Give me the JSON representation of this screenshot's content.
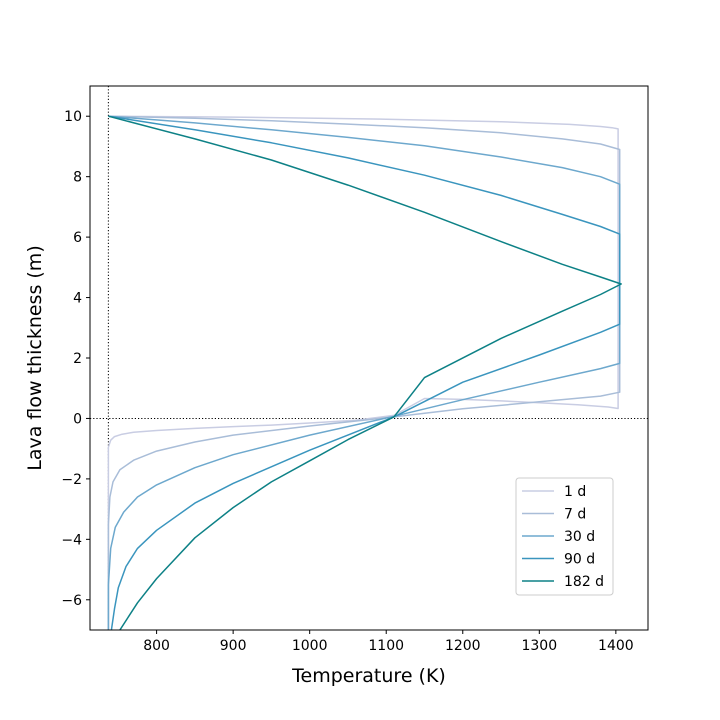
{
  "chart_data": {
    "type": "line",
    "xlabel": "Temperature (K)",
    "ylabel": "Lava flow thickness (m)",
    "xlim": [
      713,
      1442
    ],
    "ylim": [
      -7,
      11
    ],
    "xticks": [
      800,
      900,
      1000,
      1100,
      1200,
      1300,
      1400
    ],
    "xtick_labels": [
      "800",
      "900",
      "1000",
      "1100",
      "1200",
      "1300",
      "1400"
    ],
    "yticks": [
      -6,
      -4,
      -2,
      0,
      2,
      4,
      6,
      8,
      10
    ],
    "ytick_labels": [
      "−6",
      "−4",
      "−2",
      "0",
      "2",
      "4",
      "6",
      "8",
      "10"
    ],
    "reference_lines": {
      "vertical_x": 737,
      "horizontal_y": 0
    },
    "grid": false,
    "legend_position": "lower-right",
    "series": [
      {
        "name": "1 d",
        "color": "#c9cde3",
        "points": [
          [
            737,
            10
          ],
          [
            900,
            9.97
          ],
          [
            1100,
            9.9
          ],
          [
            1250,
            9.82
          ],
          [
            1340,
            9.73
          ],
          [
            1380,
            9.66
          ],
          [
            1395,
            9.62
          ],
          [
            1403,
            9.58
          ],
          [
            1403,
            0.33
          ],
          [
            1390,
            0.38
          ],
          [
            1350,
            0.45
          ],
          [
            1300,
            0.52
          ],
          [
            1250,
            0.58
          ],
          [
            1200,
            0.63
          ],
          [
            1150,
            0.66
          ],
          [
            1110,
            0.1
          ],
          [
            1060,
            -0.06
          ],
          [
            1000,
            -0.15
          ],
          [
            950,
            -0.22
          ],
          [
            900,
            -0.27
          ],
          [
            850,
            -0.33
          ],
          [
            800,
            -0.4
          ],
          [
            770,
            -0.46
          ],
          [
            755,
            -0.52
          ],
          [
            745,
            -0.6
          ],
          [
            740,
            -0.72
          ],
          [
            737,
            -0.95
          ],
          [
            737,
            -7
          ]
        ]
      },
      {
        "name": "7 d",
        "color": "#a9bdd8",
        "points": [
          [
            737,
            10
          ],
          [
            850,
            9.93
          ],
          [
            950,
            9.85
          ],
          [
            1050,
            9.74
          ],
          [
            1150,
            9.62
          ],
          [
            1250,
            9.45
          ],
          [
            1330,
            9.25
          ],
          [
            1380,
            9.08
          ],
          [
            1405,
            8.9
          ],
          [
            1405,
            0.87
          ],
          [
            1380,
            0.74
          ],
          [
            1300,
            0.55
          ],
          [
            1200,
            0.32
          ],
          [
            1110,
            0.05
          ],
          [
            1000,
            -0.25
          ],
          [
            900,
            -0.55
          ],
          [
            850,
            -0.78
          ],
          [
            800,
            -1.08
          ],
          [
            770,
            -1.38
          ],
          [
            752,
            -1.7
          ],
          [
            743,
            -2.1
          ],
          [
            739,
            -2.6
          ],
          [
            737,
            -3.5
          ],
          [
            737,
            -7
          ]
        ]
      },
      {
        "name": "30 d",
        "color": "#6da8cd",
        "points": [
          [
            737,
            10
          ],
          [
            850,
            9.78
          ],
          [
            950,
            9.55
          ],
          [
            1050,
            9.3
          ],
          [
            1150,
            9.02
          ],
          [
            1250,
            8.65
          ],
          [
            1330,
            8.3
          ],
          [
            1380,
            8.0
          ],
          [
            1405,
            7.75
          ],
          [
            1405,
            1.82
          ],
          [
            1380,
            1.65
          ],
          [
            1300,
            1.2
          ],
          [
            1200,
            0.62
          ],
          [
            1110,
            0.07
          ],
          [
            1000,
            -0.55
          ],
          [
            900,
            -1.2
          ],
          [
            850,
            -1.63
          ],
          [
            800,
            -2.2
          ],
          [
            775,
            -2.6
          ],
          [
            757,
            -3.1
          ],
          [
            746,
            -3.6
          ],
          [
            740,
            -4.3
          ],
          [
            737,
            -5.5
          ],
          [
            737,
            -7
          ]
        ]
      },
      {
        "name": "90 d",
        "color": "#3a95be",
        "points": [
          [
            737,
            10
          ],
          [
            850,
            9.55
          ],
          [
            950,
            9.12
          ],
          [
            1050,
            8.62
          ],
          [
            1150,
            8.05
          ],
          [
            1250,
            7.38
          ],
          [
            1330,
            6.75
          ],
          [
            1380,
            6.35
          ],
          [
            1405,
            6.1
          ],
          [
            1405,
            3.12
          ],
          [
            1380,
            2.85
          ],
          [
            1300,
            2.1
          ],
          [
            1200,
            1.2
          ],
          [
            1110,
            0.05
          ],
          [
            1000,
            -1.05
          ],
          [
            900,
            -2.15
          ],
          [
            850,
            -2.8
          ],
          [
            800,
            -3.7
          ],
          [
            775,
            -4.3
          ],
          [
            760,
            -4.9
          ],
          [
            750,
            -5.6
          ],
          [
            745,
            -6.3
          ],
          [
            741,
            -7
          ]
        ]
      },
      {
        "name": "182 d",
        "color": "#0d8186",
        "points": [
          [
            737,
            10
          ],
          [
            850,
            9.25
          ],
          [
            950,
            8.55
          ],
          [
            1050,
            7.72
          ],
          [
            1150,
            6.82
          ],
          [
            1250,
            5.85
          ],
          [
            1330,
            5.1
          ],
          [
            1380,
            4.68
          ],
          [
            1407,
            4.45
          ],
          [
            1380,
            4.1
          ],
          [
            1330,
            3.55
          ],
          [
            1250,
            2.65
          ],
          [
            1150,
            1.35
          ],
          [
            1110,
            0.05
          ],
          [
            1050,
            -0.7
          ],
          [
            1000,
            -1.4
          ],
          [
            950,
            -2.1
          ],
          [
            900,
            -2.95
          ],
          [
            850,
            -3.95
          ],
          [
            800,
            -5.3
          ],
          [
            775,
            -6.1
          ],
          [
            752,
            -7
          ]
        ]
      }
    ]
  }
}
